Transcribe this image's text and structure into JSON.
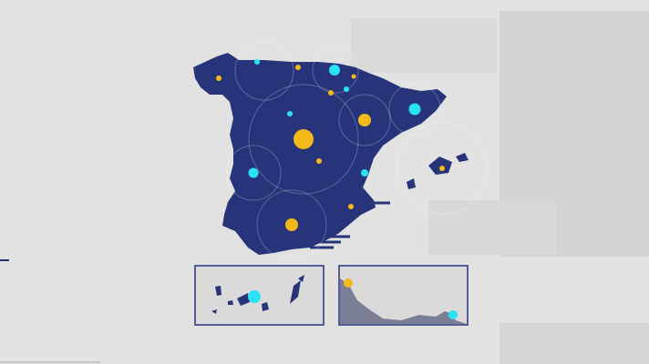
{
  "colors": {
    "background": "#e2e2e2",
    "land": "#27347a",
    "inset_land_ceuta": "#7a7f96",
    "yellow": "#f5b91a",
    "cyan": "#29e2f4",
    "frame": "#27347a"
  },
  "markers": [
    {
      "color": "cyan",
      "size": "small",
      "region": "galicia-north"
    },
    {
      "color": "yellow",
      "size": "small",
      "region": "galicia"
    },
    {
      "color": "yellow",
      "size": "small",
      "region": "asturias"
    },
    {
      "color": "cyan",
      "size": "medium",
      "region": "cantabria-basque"
    },
    {
      "color": "yellow",
      "size": "small",
      "region": "navarra-west"
    },
    {
      "color": "cyan",
      "size": "small",
      "region": "navarra"
    },
    {
      "color": "yellow",
      "size": "small",
      "region": "la-rioja"
    },
    {
      "color": "cyan",
      "size": "medium",
      "region": "catalonia"
    },
    {
      "color": "cyan",
      "size": "small",
      "region": "castilla-leon"
    },
    {
      "color": "yellow",
      "size": "medium",
      "region": "aragon"
    },
    {
      "color": "yellow",
      "size": "large",
      "region": "madrid"
    },
    {
      "color": "yellow",
      "size": "small",
      "region": "castilla-la-mancha"
    },
    {
      "color": "cyan",
      "size": "medium",
      "region": "extremadura"
    },
    {
      "color": "cyan",
      "size": "small",
      "region": "valencia"
    },
    {
      "color": "yellow",
      "size": "small",
      "region": "murcia"
    },
    {
      "color": "yellow",
      "size": "medium",
      "region": "andalusia"
    },
    {
      "color": "yellow",
      "size": "small",
      "region": "balearic-islands"
    }
  ],
  "insets": [
    {
      "name": "canary-islands",
      "markers": [
        {
          "color": "cyan",
          "size": "medium"
        }
      ]
    },
    {
      "name": "ceuta-melilla",
      "markers": [
        {
          "color": "yellow",
          "size": "small"
        },
        {
          "color": "cyan",
          "size": "small"
        }
      ]
    }
  ]
}
